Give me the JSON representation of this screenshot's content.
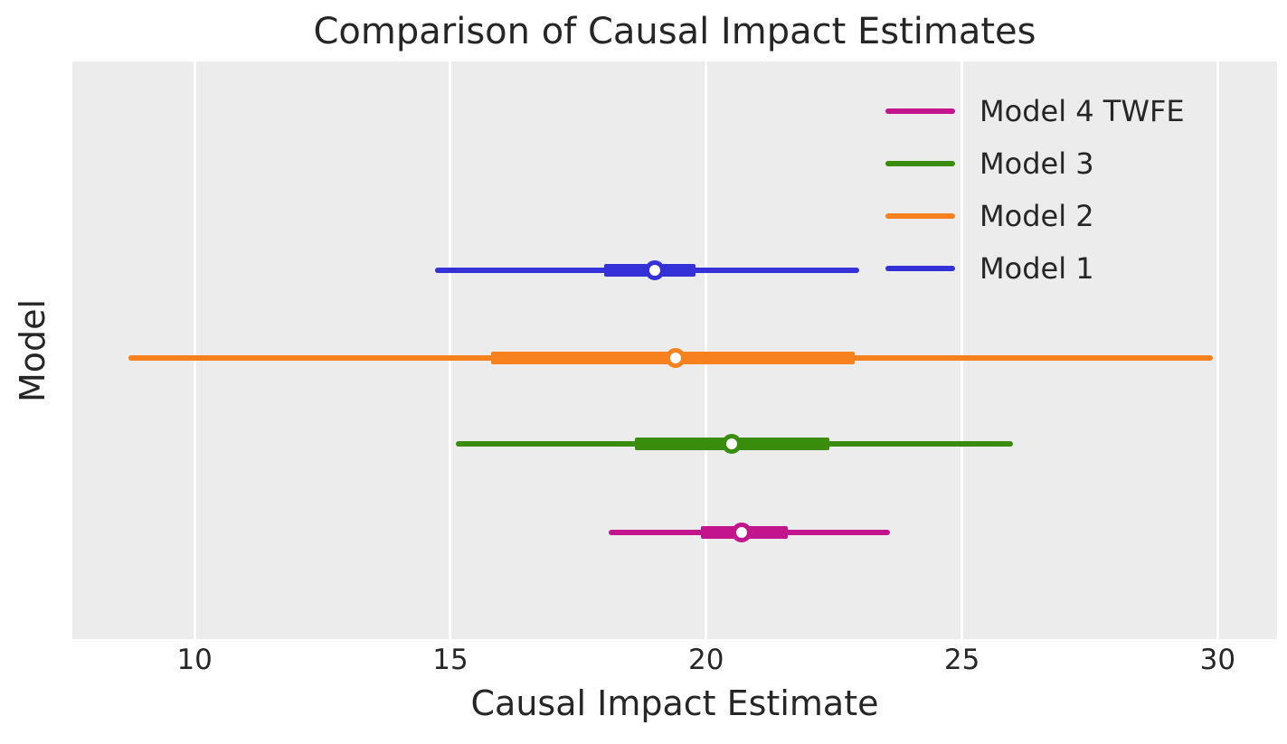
{
  "figure": {
    "title": "Comparison of Causal Impact Estimates",
    "xlabel": "Causal Impact Estimate",
    "ylabel": "Model"
  },
  "colors": {
    "figure_background": "#ffffff",
    "axes_background": "#ececec",
    "gridline": "#ffffff",
    "text": "#262626",
    "marker_fill": "#ffffff"
  },
  "chart_data": {
    "type": "scatter",
    "subtype": "dot-and-whisker point estimates with thick (inner) and thin (outer) interval bars",
    "title": "Comparison of Causal Impact Estimates",
    "xlabel": "Causal Impact Estimate",
    "ylabel": "Model",
    "xlim": [
      7.61,
      31.16
    ],
    "xticks": [
      10,
      15,
      20,
      25,
      30
    ],
    "grid": "vertical white gridlines on light gray plot area",
    "legend_position": "upper right, frameless",
    "legend_entries": [
      "Model 4 TWFE",
      "Model 3",
      "Model 2",
      "Model 1"
    ],
    "series": [
      {
        "name": "Model 1",
        "color": "#3431d8",
        "estimate": 19.0,
        "thick_interval": [
          18.0,
          19.8
        ],
        "thin_interval": [
          14.7,
          23.0
        ],
        "row_frac": 0.362
      },
      {
        "name": "Model 2",
        "color": "#f8811f",
        "estimate": 19.4,
        "thick_interval": [
          15.8,
          22.9
        ],
        "thin_interval": [
          8.7,
          29.9
        ],
        "row_frac": 0.513
      },
      {
        "name": "Model 3",
        "color": "#3a8d0c",
        "estimate": 20.5,
        "thick_interval": [
          18.6,
          22.4
        ],
        "thin_interval": [
          15.1,
          26.0
        ],
        "row_frac": 0.662
      },
      {
        "name": "Model 4 TWFE",
        "color": "#c3148e",
        "estimate": 20.7,
        "thick_interval": [
          19.9,
          21.6
        ],
        "thin_interval": [
          18.1,
          23.6
        ],
        "row_frac": 0.815
      }
    ]
  }
}
